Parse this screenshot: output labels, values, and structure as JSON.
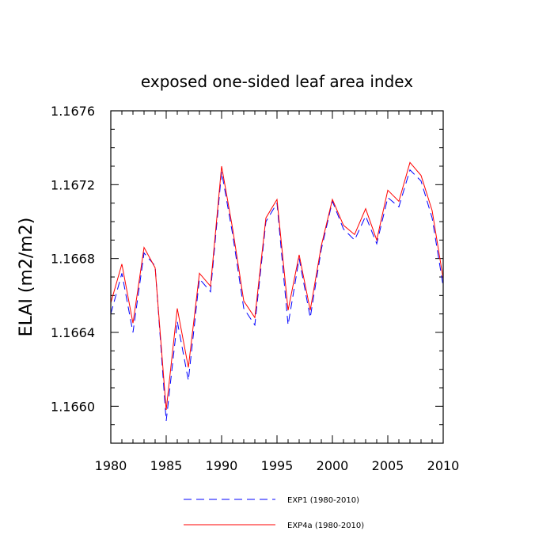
{
  "chart_data": {
    "type": "line",
    "title": "exposed one-sided leaf area index",
    "xlabel": "",
    "ylabel": "ELAI  (m2/m2)",
    "xlim": [
      1980,
      2010
    ],
    "ylim": [
      1.1658,
      1.1676
    ],
    "xticks": [
      1980,
      1985,
      1990,
      1995,
      2000,
      2005,
      2010
    ],
    "yticks": [
      "1.1660",
      "1.1664",
      "1.1668",
      "1.1672",
      "1.1676"
    ],
    "x": [
      1980,
      1981,
      1982,
      1983,
      1984,
      1985,
      1986,
      1987,
      1988,
      1989,
      1990,
      1991,
      1992,
      1993,
      1994,
      1995,
      1996,
      1997,
      1998,
      1999,
      2000,
      2001,
      2002,
      2003,
      2004,
      2005,
      2006,
      2007,
      2008,
      2009,
      2010
    ],
    "series": [
      {
        "name": "EXP1 (1980-2010)",
        "color": "#0000ff",
        "dash": "dashed",
        "values": [
          1.1665,
          1.16672,
          1.1664,
          1.16683,
          1.16676,
          1.16592,
          1.16646,
          1.16614,
          1.16669,
          1.16662,
          1.16727,
          1.16693,
          1.16653,
          1.16644,
          1.167,
          1.1671,
          1.16644,
          1.1668,
          1.16648,
          1.16685,
          1.16711,
          1.16696,
          1.1669,
          1.16703,
          1.16688,
          1.16713,
          1.16708,
          1.16728,
          1.16722,
          1.16702,
          1.16665
        ]
      },
      {
        "name": "EXP4a (1980-2010)",
        "color": "#ff0000",
        "dash": "solid",
        "values": [
          1.16656,
          1.16677,
          1.16645,
          1.16686,
          1.16675,
          1.16598,
          1.16653,
          1.16621,
          1.16672,
          1.16665,
          1.1673,
          1.16696,
          1.16657,
          1.16648,
          1.16702,
          1.16712,
          1.16652,
          1.16682,
          1.16652,
          1.16687,
          1.16712,
          1.16698,
          1.16693,
          1.16707,
          1.1669,
          1.16717,
          1.16711,
          1.16732,
          1.16725,
          1.16706,
          1.16669
        ]
      }
    ],
    "legend_position": "bottom"
  }
}
